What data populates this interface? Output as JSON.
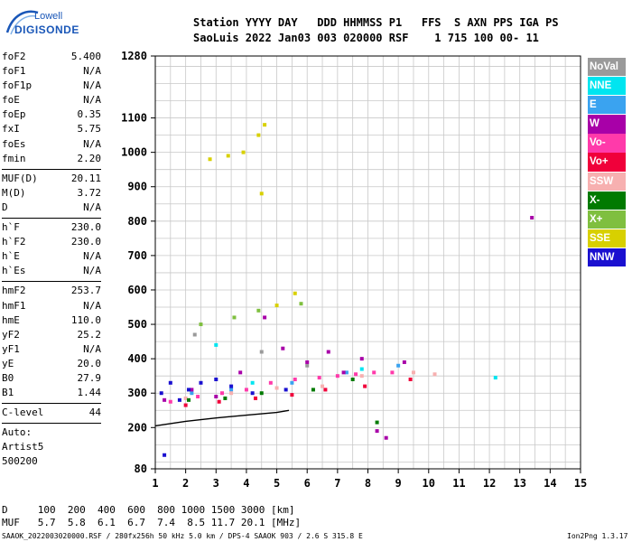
{
  "logo": {
    "line1": "Lowell",
    "line2": "DIGISONDE"
  },
  "header": {
    "line1": "Station YYYY DAY   DDD HHMMSS P1   FFS  S AXN PPS IGA PS",
    "line2": "SaoLuis 2022 Jan03 003 020000 RSF    1 715 100 00- 11"
  },
  "params": [
    {
      "name": "foF2",
      "value": "5.400"
    },
    {
      "name": "foF1",
      "value": "N/A"
    },
    {
      "name": "foF1p",
      "value": "N/A"
    },
    {
      "name": "foE",
      "value": "N/A"
    },
    {
      "name": "foEp",
      "value": "0.35"
    },
    {
      "name": "fxI",
      "value": "5.75"
    },
    {
      "name": "foEs",
      "value": "N/A"
    },
    {
      "name": "fmin",
      "value": "2.20"
    },
    {
      "sep": true
    },
    {
      "name": "MUF(D)",
      "value": "20.11"
    },
    {
      "name": "M(D)",
      "value": "3.72"
    },
    {
      "name": "D",
      "value": "N/A"
    },
    {
      "sep": true
    },
    {
      "name": "h`F",
      "value": "230.0"
    },
    {
      "name": "h`F2",
      "value": "230.0"
    },
    {
      "name": "h`E",
      "value": "N/A"
    },
    {
      "name": "h`Es",
      "value": "N/A"
    },
    {
      "sep": true
    },
    {
      "name": "hmF2",
      "value": "253.7"
    },
    {
      "name": "hmF1",
      "value": "N/A"
    },
    {
      "name": "hmE",
      "value": "110.0"
    },
    {
      "name": "yF2",
      "value": "25.2"
    },
    {
      "name": "yF1",
      "value": "N/A"
    },
    {
      "name": "yE",
      "value": "20.0"
    },
    {
      "name": "B0",
      "value": "27.9"
    },
    {
      "name": "B1",
      "value": "1.44"
    },
    {
      "sep": true
    },
    {
      "name": "C-level",
      "value": "44"
    },
    {
      "sep": true
    },
    {
      "name": "Auto:",
      "value": ""
    },
    {
      "name": "Artist5",
      "value": ""
    },
    {
      "name": "500200",
      "value": ""
    }
  ],
  "legend": [
    {
      "label": "NoVal",
      "color": "#9a9a9a"
    },
    {
      "label": "NNE",
      "color": "#00e5f0"
    },
    {
      "label": "E",
      "color": "#3aa3f0"
    },
    {
      "label": "W",
      "color": "#a800a8"
    },
    {
      "label": "Vo-",
      "color": "#ff3aaa"
    },
    {
      "label": "Vo+",
      "color": "#f0003a"
    },
    {
      "label": "SSW",
      "color": "#f7b0b0"
    },
    {
      "label": "X-",
      "color": "#007a00"
    },
    {
      "label": "X+",
      "color": "#7fbf3f"
    },
    {
      "label": "SSE",
      "color": "#d8d000"
    },
    {
      "label": "NNW",
      "color": "#1a10d0"
    }
  ],
  "bottom": {
    "d_line": "D     100  200  400  600  800 1000 1500 3000 [km]",
    "muf_line": "MUF   5.7  5.8  6.1  6.7  7.4  8.5 11.7 20.1 [MHz]"
  },
  "footer": {
    "left": "SAAOK_2022003020000.RSF / 280fx256h 50 kHz 5.0 km / DPS-4 SAAOK 903 / 2.6 S 315.8 E",
    "right": "Ion2Png 1.3.17"
  },
  "chart_data": {
    "type": "scatter",
    "x_ticks": [
      1,
      2,
      3,
      4,
      5,
      6,
      7,
      8,
      9,
      10,
      11,
      12,
      13,
      14,
      15
    ],
    "y_ticks": [
      80,
      200,
      300,
      400,
      500,
      600,
      700,
      800,
      900,
      1000,
      1100,
      1280
    ],
    "xlim": [
      1,
      15
    ],
    "ylim": [
      80,
      1280
    ],
    "grid": true,
    "trace": {
      "x": [
        1.0,
        2.0,
        3.0,
        4.0,
        5.0,
        5.4
      ],
      "y": [
        205,
        218,
        228,
        236,
        244,
        250
      ]
    },
    "series": [
      {
        "name": "NoVal",
        "x": [
          2.3,
          4.5,
          6.0
        ],
        "y": [
          470,
          420,
          380
        ]
      },
      {
        "name": "NNE",
        "x": [
          3.0,
          4.2,
          7.8,
          12.2
        ],
        "y": [
          440,
          330,
          370,
          345
        ]
      },
      {
        "name": "E",
        "x": [
          2.2,
          3.5,
          5.5,
          7.3,
          9.0
        ],
        "y": [
          300,
          310,
          330,
          360,
          380
        ]
      },
      {
        "name": "W",
        "x": [
          1.3,
          2.2,
          3.0,
          3.8,
          4.6,
          5.2,
          6.0,
          6.7,
          7.2,
          7.8,
          8.3,
          8.6,
          9.2,
          13.4
        ],
        "y": [
          280,
          310,
          290,
          360,
          520,
          430,
          390,
          420,
          360,
          400,
          190,
          170,
          390,
          810
        ]
      },
      {
        "name": "Vo-",
        "x": [
          1.5,
          2.4,
          3.2,
          4.0,
          4.8,
          5.6,
          6.4,
          7.0,
          7.6,
          8.2,
          8.8
        ],
        "y": [
          275,
          290,
          300,
          310,
          330,
          340,
          345,
          350,
          355,
          360,
          360
        ]
      },
      {
        "name": "Vo+",
        "x": [
          2.0,
          3.1,
          4.3,
          5.5,
          6.6,
          7.9,
          9.4
        ],
        "y": [
          265,
          275,
          285,
          295,
          310,
          320,
          340
        ]
      },
      {
        "name": "SSW",
        "x": [
          2.0,
          3.5,
          5.0,
          6.5,
          7.8,
          9.5,
          10.2
        ],
        "y": [
          285,
          300,
          315,
          320,
          350,
          360,
          355
        ]
      },
      {
        "name": "X-",
        "x": [
          2.1,
          3.3,
          4.5,
          6.2,
          7.5,
          8.3
        ],
        "y": [
          280,
          285,
          300,
          310,
          340,
          215
        ]
      },
      {
        "name": "X+",
        "x": [
          2.5,
          3.6,
          4.4,
          5.8
        ],
        "y": [
          500,
          520,
          540,
          560
        ]
      },
      {
        "name": "SSE",
        "x": [
          2.8,
          3.4,
          3.9,
          4.4,
          4.6,
          4.5,
          5.0,
          5.6
        ],
        "y": [
          980,
          990,
          1000,
          1050,
          1080,
          880,
          555,
          590
        ]
      },
      {
        "name": "NNW",
        "x": [
          1.2,
          1.5,
          1.8,
          2.1,
          2.5,
          3.0,
          3.5,
          4.2,
          5.3,
          1.3
        ],
        "y": [
          300,
          330,
          280,
          310,
          330,
          340,
          320,
          300,
          310,
          120
        ]
      }
    ]
  }
}
